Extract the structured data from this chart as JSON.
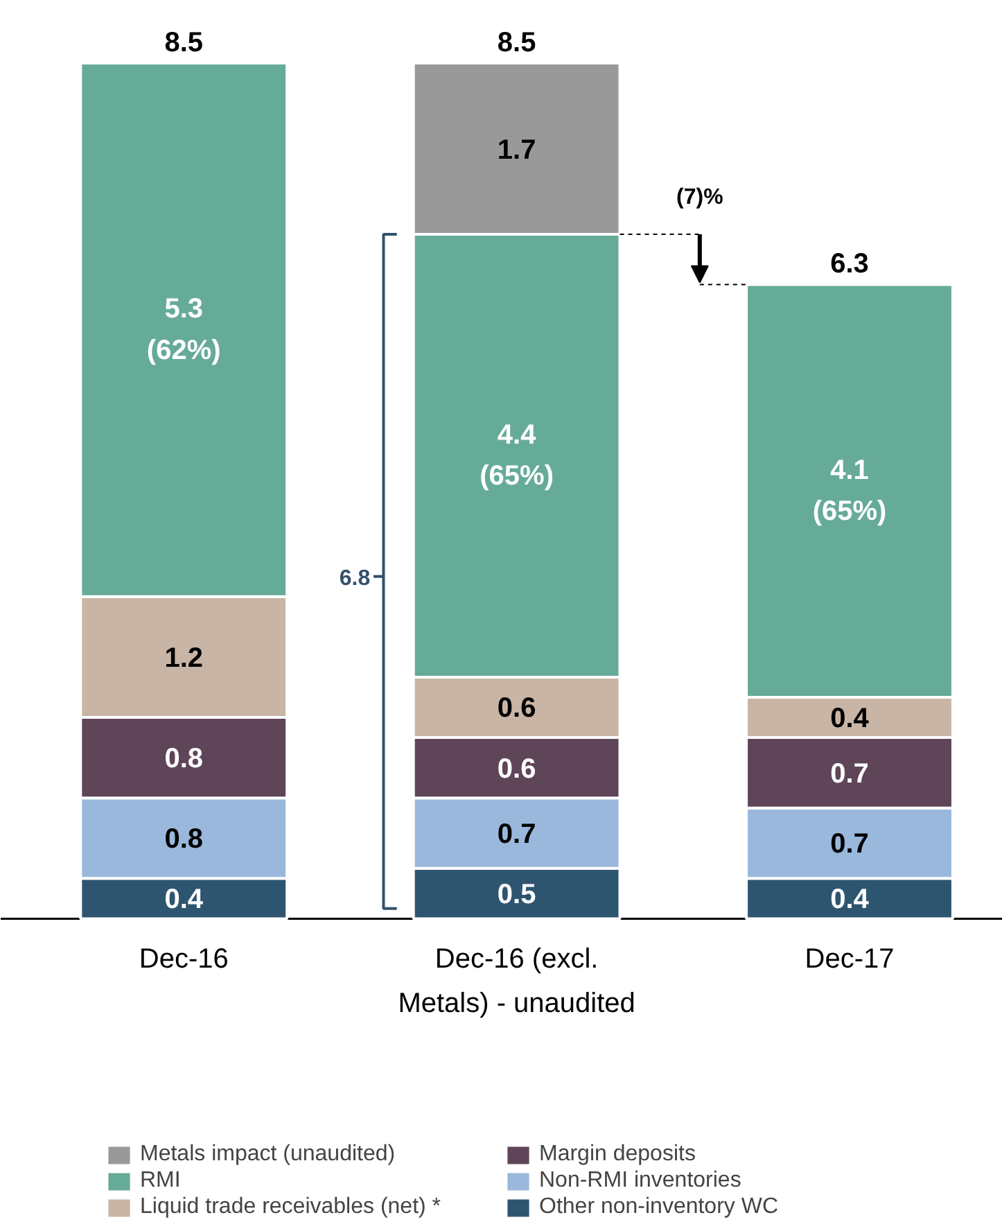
{
  "chart_data": {
    "type": "bar",
    "stacked": true,
    "data_labels": true,
    "legend": "bottom",
    "categories": [
      "Dec-16",
      "Dec-16 (excl.\nMetals) - unaudited",
      "Dec-17"
    ],
    "series": [
      {
        "name": "Other non-inventory WC",
        "color": "#2e5570",
        "values": [
          0.4,
          0.5,
          0.4
        ]
      },
      {
        "name": "Non-RMI inventories",
        "color": "#99b8dc",
        "values": [
          0.8,
          0.7,
          0.7
        ]
      },
      {
        "name": "Margin deposits",
        "color": "#5e4558",
        "values": [
          0.8,
          0.6,
          0.7
        ]
      },
      {
        "name": "Liquid trade receivables (net) *",
        "color": "#c9b5a5",
        "values": [
          1.2,
          0.6,
          0.4
        ]
      },
      {
        "name": "RMI",
        "color": "#66ab98",
        "values": [
          5.3,
          4.4,
          4.1
        ],
        "value_labels": [
          "5.3\n(62%)",
          "4.4\n(65%)",
          "4.1\n(65%)"
        ]
      },
      {
        "name": "Metals impact (unaudited)",
        "color": "#999999",
        "values": [
          null,
          1.7,
          null
        ]
      }
    ],
    "totals": [
      "8.5",
      "8.5",
      "6.3"
    ],
    "annotations": [
      "6.8",
      "(7)%"
    ]
  }
}
